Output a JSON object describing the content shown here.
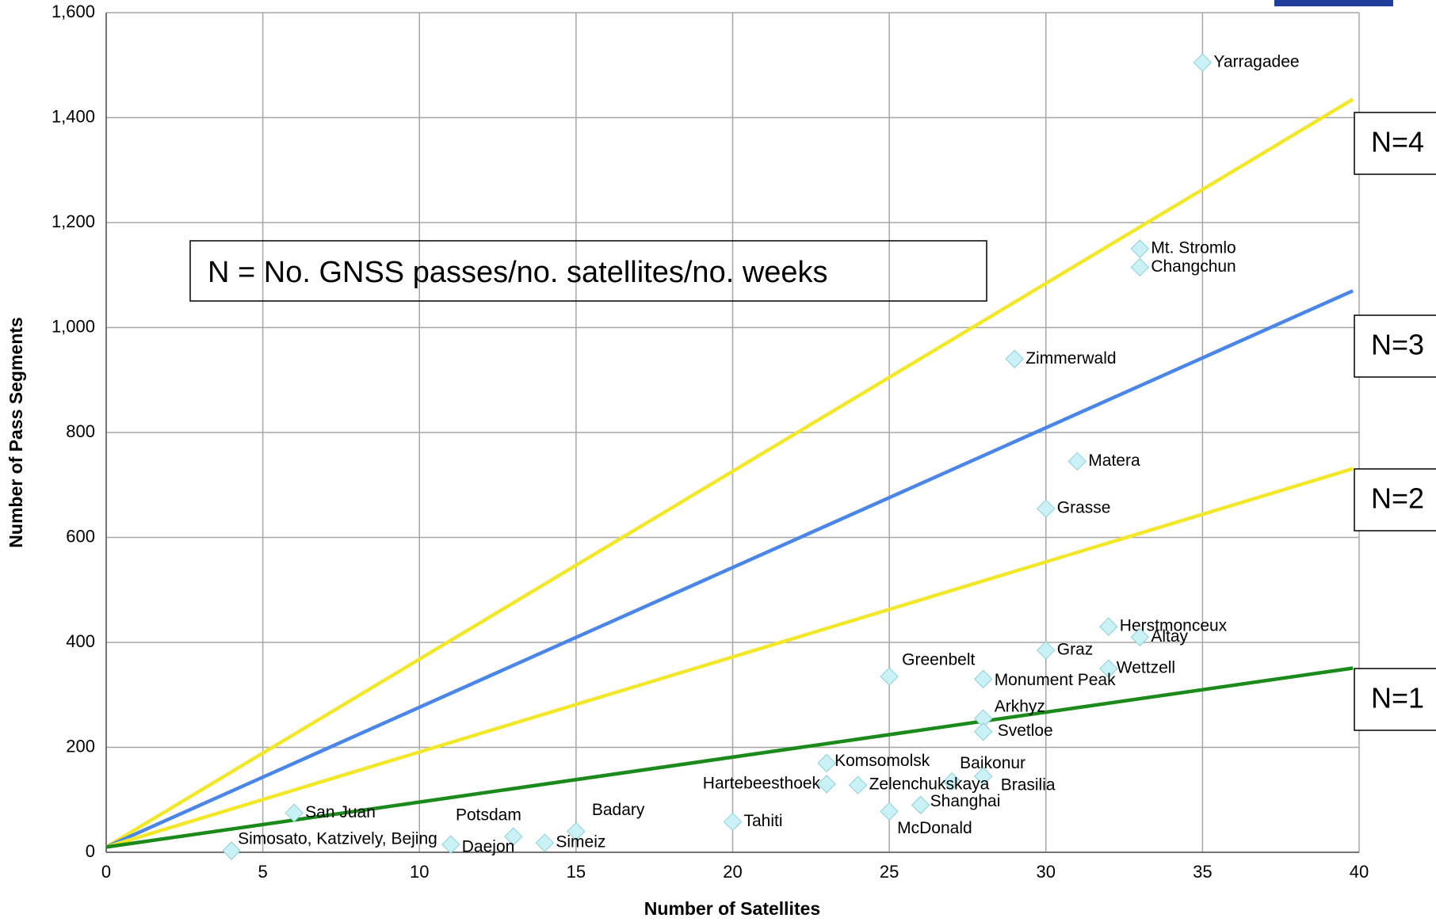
{
  "chart_data": {
    "type": "scatter",
    "xlabel": "Number of Satellites",
    "ylabel": "Number of Pass Segments",
    "annotation": "N = No. GNSS passes/no. satellites/no. weeks",
    "xlim": [
      0,
      40
    ],
    "ylim": [
      0,
      1600
    ],
    "xticks": [
      0,
      5,
      10,
      15,
      20,
      25,
      30,
      35,
      40
    ],
    "yticks": [
      0,
      200,
      400,
      600,
      800,
      {
        "value": 1000,
        "label": "1,000"
      },
      {
        "value": 1200,
        "label": "1,200"
      },
      {
        "value": 1400,
        "label": "1,400"
      },
      {
        "value": 1600,
        "label": "1,600"
      }
    ],
    "grid": true,
    "points": {
      "color": "#c9f1f6",
      "labels": [
        "Yarragadee",
        "Mt. Stromlo",
        "Changchun",
        "Zimmerwald",
        "Matera",
        "Grasse",
        "Herstmonceux",
        "Altay",
        "Graz",
        "Wettzell",
        "Greenbelt",
        "Monument Peak",
        "Arkhyz",
        "Svetloe",
        "Komsomolsk",
        "Baikonur",
        "Brasilia",
        "Hartebeesthoek",
        "Zelenchukskaya",
        "Shanghai",
        "McDonald",
        "Tahiti",
        "San Juan",
        "Potsdam",
        "Badary",
        "Simeiz",
        "Daejon",
        "Simosato, Katzively, Bejing"
      ],
      "x": [
        35,
        33,
        33,
        29,
        31,
        30,
        32,
        33,
        30,
        32,
        25,
        28,
        28,
        28,
        23,
        27,
        28,
        23,
        24,
        26,
        25,
        20,
        6,
        13,
        15,
        14,
        11,
        4
      ],
      "values": [
        1505,
        1150,
        1115,
        940,
        745,
        655,
        430,
        410,
        385,
        350,
        335,
        330,
        255,
        230,
        170,
        135,
        145,
        130,
        128,
        90,
        78,
        58,
        75,
        30,
        40,
        18,
        15,
        3
      ]
    },
    "series": [
      {
        "name": "N=4",
        "color": "#f2e829",
        "x": [
          0,
          39.8
        ],
        "values": [
          10,
          1435
        ]
      },
      {
        "name": "N=3",
        "color": "#4a86e8",
        "x": [
          0,
          39.8
        ],
        "values": [
          10,
          1070
        ]
      },
      {
        "name": "N=2",
        "color": "#f2e829",
        "x": [
          0,
          39.8
        ],
        "values": [
          10,
          731
        ]
      },
      {
        "name": "N=1",
        "color": "#1a8a1a",
        "x": [
          0,
          39.8
        ],
        "values": [
          10,
          351
        ]
      }
    ]
  }
}
